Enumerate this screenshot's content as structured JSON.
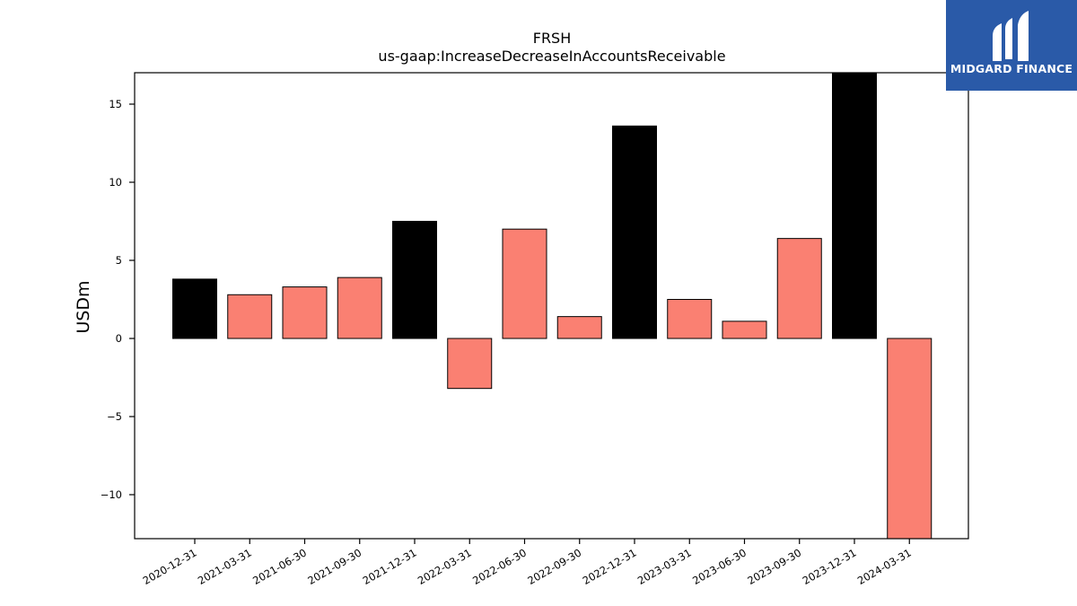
{
  "brand": {
    "name": "MIDGARD FINANCE",
    "bg_color": "#2a5aa8"
  },
  "chart_data": {
    "type": "bar",
    "title": "FRSH",
    "subtitle": "us-gaap:IncreaseDecreaseInAccountsReceivable",
    "xlabel": "",
    "ylabel": "USDm",
    "ylim": [
      -12.9,
      17.0
    ],
    "yticks": [
      -10,
      -5,
      0,
      5,
      10,
      15
    ],
    "ytick_labels": [
      "−10",
      "−5",
      "0",
      "5",
      "10",
      "15"
    ],
    "grid": false,
    "categories": [
      "2020-12-31",
      "2021-03-31",
      "2021-06-30",
      "2021-09-30",
      "2021-12-31",
      "2022-03-31",
      "2022-06-30",
      "2022-09-30",
      "2022-12-31",
      "2023-03-31",
      "2023-06-30",
      "2023-09-30",
      "2023-12-31",
      "2024-03-31"
    ],
    "values": [
      3.8,
      2.8,
      3.3,
      3.9,
      7.5,
      -3.2,
      7.0,
      1.4,
      13.6,
      2.5,
      1.1,
      6.4,
      17.0,
      -12.9
    ],
    "bar_colors": [
      "#000000",
      "#fa8072",
      "#fa8072",
      "#fa8072",
      "#000000",
      "#fa8072",
      "#fa8072",
      "#fa8072",
      "#000000",
      "#fa8072",
      "#fa8072",
      "#fa8072",
      "#000000",
      "#fa8072"
    ]
  }
}
